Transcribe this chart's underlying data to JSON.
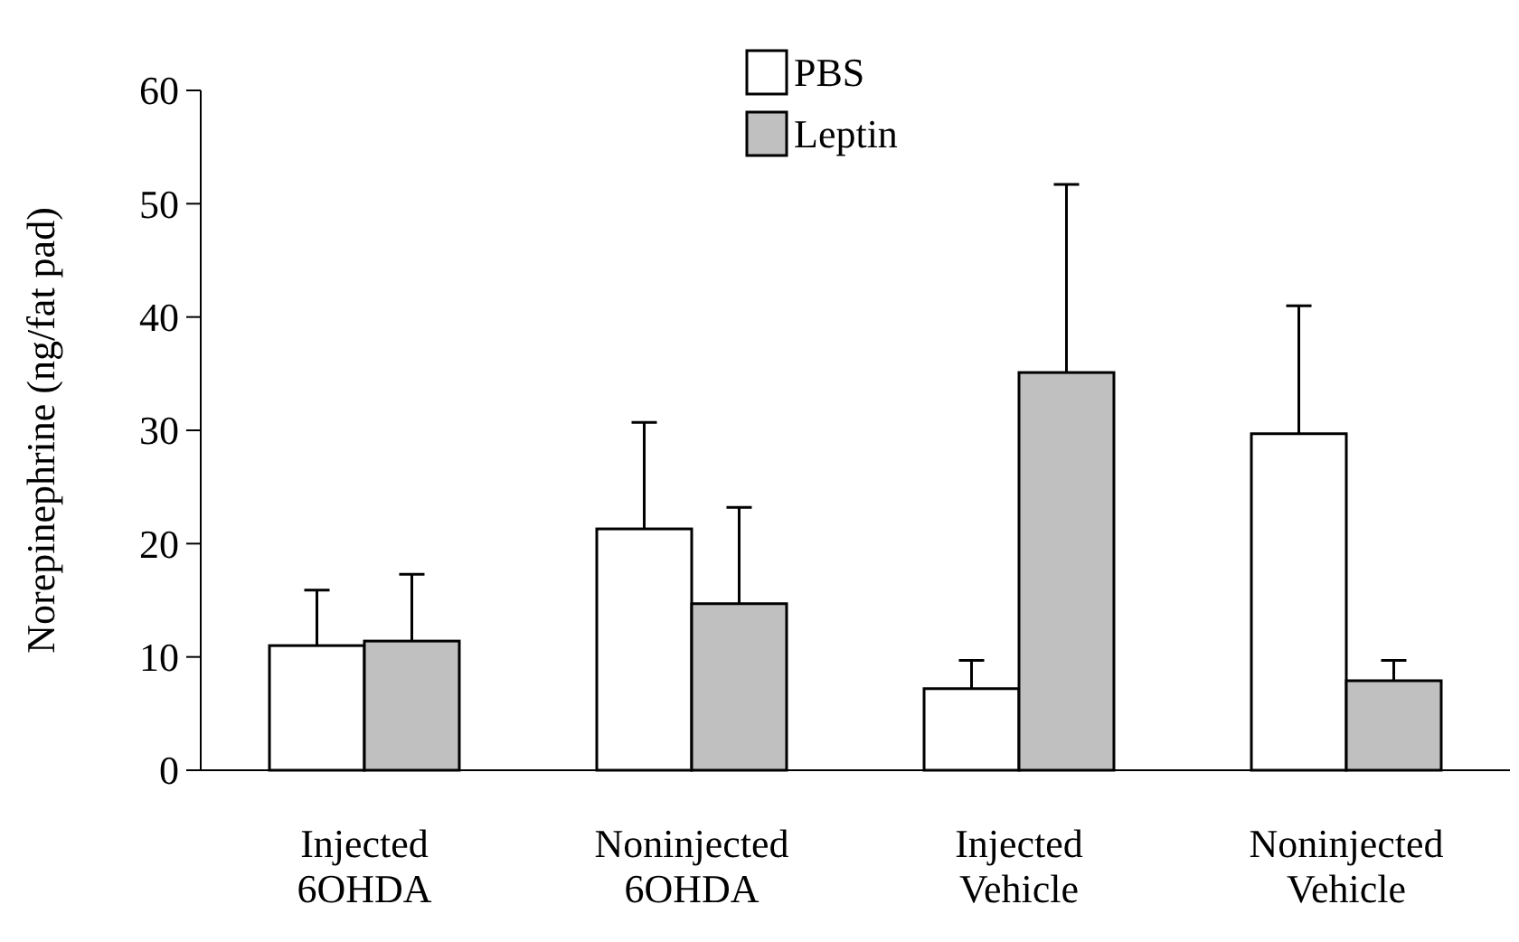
{
  "chart_data": {
    "type": "bar",
    "ylabel": "Norepinephrine (ng/fat pad)",
    "categories": [
      "Injected\n6OHDA",
      "Noninjected\n6OHDA",
      "Injected\nVehicle",
      "Noninjected\nVehicle"
    ],
    "series": [
      {
        "name": "PBS",
        "color": "#ffffff",
        "values": [
          11.0,
          21.3,
          7.2,
          29.7
        ],
        "errors": [
          [
            11.0,
            15.9
          ],
          [
            21.3,
            30.7
          ],
          [
            7.2,
            9.7
          ],
          [
            29.7,
            41.0
          ]
        ]
      },
      {
        "name": "Leptin",
        "color": "#c0c0c0",
        "values": [
          11.4,
          14.7,
          35.1,
          7.9
        ],
        "errors": [
          [
            11.4,
            17.3
          ],
          [
            14.7,
            23.2
          ],
          [
            35.1,
            51.7
          ],
          [
            7.9,
            9.7
          ]
        ]
      }
    ],
    "ylim": [
      0,
      60
    ],
    "yticks": [
      0,
      10,
      20,
      30,
      40,
      50,
      60
    ],
    "grid": false,
    "legend": "top"
  }
}
